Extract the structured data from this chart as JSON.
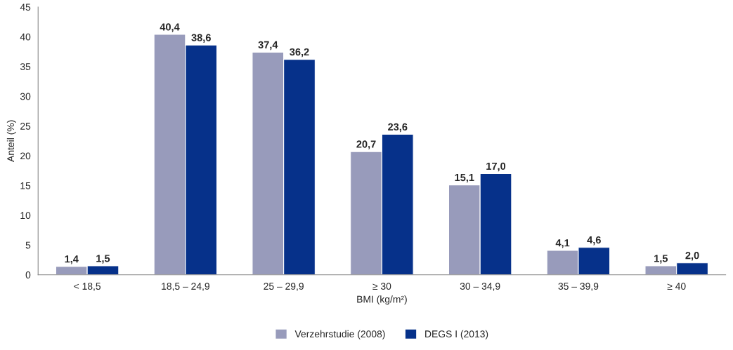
{
  "chart_data": {
    "type": "bar",
    "xlabel": "BMI (kg/m²)",
    "ylabel": "Anteil (%)",
    "categories": [
      "< 18,5",
      "18,5 – 24,9",
      "25 – 29,9",
      "≥ 30",
      "30 – 34,9",
      "35 – 39,9",
      "≥ 40"
    ],
    "series": [
      {
        "name": "Verzehrstudie (2008)",
        "color": "#989bbb",
        "values": [
          1.4,
          40.4,
          37.4,
          20.7,
          15.1,
          4.1,
          1.5
        ],
        "value_labels": [
          "1,4",
          "40,4",
          "37,4",
          "20,7",
          "15,1",
          "4,1",
          "1,5"
        ]
      },
      {
        "name": "DEGS I (2013)",
        "color": "#06318a",
        "values": [
          1.5,
          38.6,
          36.2,
          23.6,
          17.0,
          4.6,
          2.0
        ],
        "value_labels": [
          "1,5",
          "38,6",
          "36,2",
          "23,6",
          "17,0",
          "4,6",
          "2,0"
        ]
      }
    ],
    "ylim": [
      0,
      45
    ],
    "yticks": [
      0,
      5,
      10,
      15,
      20,
      25,
      30,
      35,
      40,
      45
    ],
    "grid": false,
    "legend": "bottom"
  }
}
